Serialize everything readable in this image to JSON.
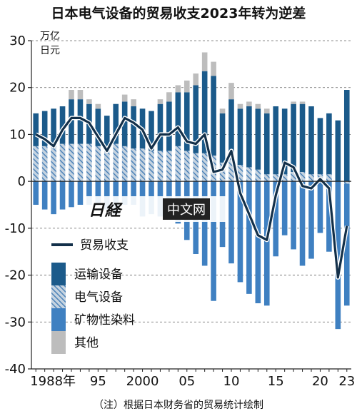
{
  "title": "日本电气设备的贸易收支2023年转为逆差",
  "note": "（注）根据日本财务省的贸易统计绘制",
  "watermark": {
    "logo": "日経",
    "text": "中文网"
  },
  "colors": {
    "transport": "#1b5a8a",
    "electric_base": "#c5d3e0",
    "electric_hatch": "#3d78b3",
    "mineral": "#3f80c1",
    "other": "#bdbdbd",
    "line": "#13304a",
    "axis": "#222222"
  },
  "chart_data": {
    "type": "bar",
    "stacked": true,
    "unit_label": [
      "万亿",
      "日元"
    ],
    "ylim": [
      -40,
      30
    ],
    "yticks": [
      30,
      20,
      10,
      0,
      -10,
      -20,
      -30,
      -40
    ],
    "grid": "dashed horizontal",
    "legend_placement": "left, lower",
    "x": [
      1988,
      1989,
      1990,
      1991,
      1992,
      1993,
      1994,
      1995,
      1996,
      1997,
      1998,
      1999,
      2000,
      2001,
      2002,
      2003,
      2004,
      2005,
      2006,
      2007,
      2008,
      2009,
      2010,
      2011,
      2012,
      2013,
      2014,
      2015,
      2016,
      2017,
      2018,
      2019,
      2020,
      2021,
      2022,
      2023
    ],
    "xtick_labels": [
      {
        "x": 1988,
        "label": "1988年"
      },
      {
        "x": 1995,
        "label": "95"
      },
      {
        "x": 2000,
        "label": "2000"
      },
      {
        "x": 2005,
        "label": "05"
      },
      {
        "x": 2010,
        "label": "10"
      },
      {
        "x": 2015,
        "label": "15"
      },
      {
        "x": 2020,
        "label": "20"
      },
      {
        "x": 2023,
        "label": "23"
      }
    ],
    "series": [
      {
        "name": "运输设备",
        "kind": "bar",
        "values": [
          7.0,
          7.5,
          7.5,
          8.0,
          9.5,
          9.5,
          8.5,
          8.0,
          7.0,
          8.5,
          9.5,
          9.0,
          8.5,
          8.5,
          10.0,
          10.5,
          11.5,
          12.5,
          14.5,
          17.5,
          17.0,
          10.5,
          12.5,
          12.0,
          13.0,
          13.0,
          13.0,
          14.5,
          14.0,
          14.5,
          14.5,
          14.5,
          12.0,
          13.0,
          13.0,
          19.5
        ]
      },
      {
        "name": "电气设备",
        "kind": "bar",
        "values": [
          7.5,
          7.5,
          8.0,
          8.0,
          8.0,
          8.0,
          8.0,
          7.5,
          7.0,
          8.0,
          7.5,
          7.0,
          7.0,
          6.5,
          6.5,
          6.5,
          7.5,
          6.5,
          6.0,
          6.0,
          5.5,
          4.0,
          5.0,
          3.5,
          3.0,
          2.5,
          1.5,
          1.5,
          1.5,
          2.0,
          2.0,
          1.5,
          1.5,
          1.5,
          0.0,
          -0.5
        ]
      },
      {
        "name": "矿物性染料",
        "kind": "bar",
        "values": [
          -5.0,
          -6.0,
          -7.0,
          -6.0,
          -5.5,
          -5.0,
          -5.0,
          -5.0,
          -6.0,
          -7.0,
          -5.0,
          -5.0,
          -7.5,
          -7.0,
          -7.5,
          -7.5,
          -9.0,
          -12.5,
          -15.5,
          -18.0,
          -25.5,
          -14.0,
          -17.5,
          -21.5,
          -24.0,
          -26.0,
          -26.5,
          -16.0,
          -11.5,
          -14.5,
          -18.0,
          -16.5,
          -11.0,
          -15.0,
          -31.5,
          -26.0
        ]
      },
      {
        "name": "其他",
        "kind": "bar",
        "values": [
          0.0,
          0.0,
          0.0,
          0.0,
          2.0,
          2.0,
          1.0,
          1.0,
          0.0,
          0.0,
          1.5,
          1.5,
          0.0,
          0.0,
          1.0,
          2.0,
          1.5,
          2.5,
          2.5,
          4.0,
          3.0,
          1.0,
          3.5,
          1.0,
          1.0,
          1.0,
          1.0,
          0.0,
          0.0,
          0.5,
          0.5,
          0.0,
          0.0,
          0.0,
          0.0,
          0.0
        ]
      },
      {
        "name": "贸易收支",
        "kind": "line",
        "values": [
          10.0,
          9.0,
          7.5,
          11.0,
          13.5,
          13.5,
          12.5,
          9.5,
          6.5,
          10.0,
          13.5,
          12.5,
          11.0,
          7.0,
          10.0,
          10.0,
          11.5,
          8.5,
          8.0,
          10.0,
          2.0,
          2.5,
          6.5,
          -2.5,
          -7.0,
          -11.5,
          -12.5,
          -3.0,
          4.0,
          3.0,
          -1.0,
          -1.5,
          0.5,
          -1.5,
          -20.5,
          -9.5
        ]
      }
    ]
  }
}
